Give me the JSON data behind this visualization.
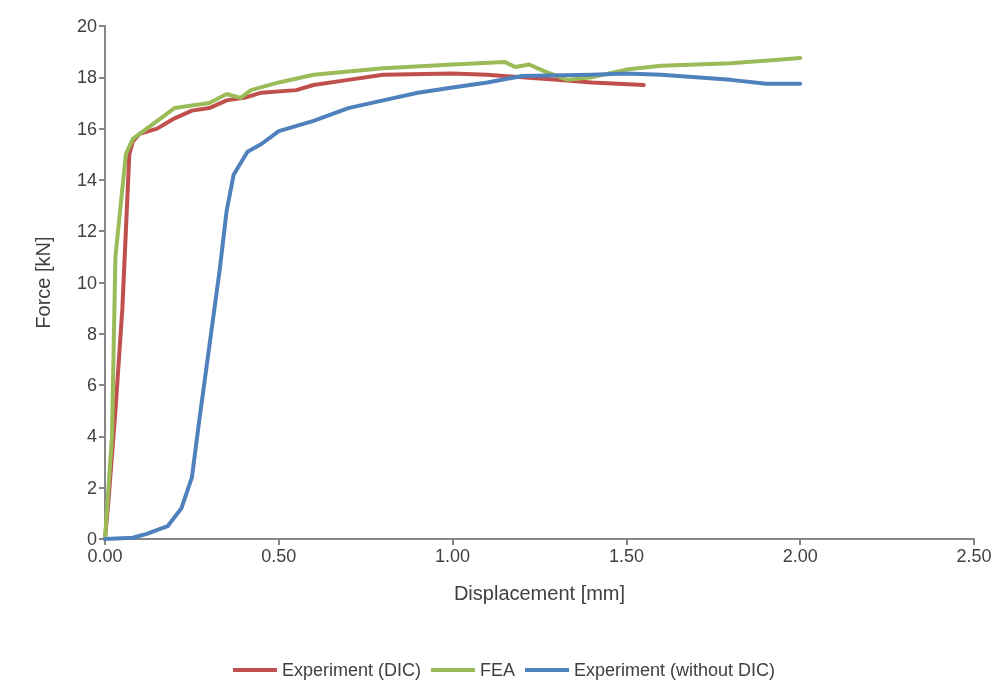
{
  "chart_data": {
    "type": "line",
    "xlabel": "Displacement [mm]",
    "ylabel": "Force [kN]",
    "xlim": [
      0,
      2.5
    ],
    "xticks": [
      {
        "value": 0,
        "label": "0.00"
      },
      {
        "value": 0.5,
        "label": "0.50"
      },
      {
        "value": 1,
        "label": "1.00"
      },
      {
        "value": 1.5,
        "label": "1.50"
      },
      {
        "value": 2,
        "label": "2.00"
      },
      {
        "value": 2.5,
        "label": "2.50"
      }
    ],
    "ylim": [
      0,
      20
    ],
    "yticks": [
      0,
      2,
      4,
      6,
      8,
      10,
      12,
      14,
      16,
      18,
      20
    ],
    "grid": false,
    "legend": "bottom",
    "marker": "none",
    "line_style": "solid",
    "series": [
      {
        "name": "Experiment (DIC)",
        "color": "#c0504d",
        "x": [
          0,
          0.01,
          0.03,
          0.05,
          0.07,
          0.08,
          0.1,
          0.15,
          0.2,
          0.25,
          0.3,
          0.35,
          0.4,
          0.45,
          0.55,
          0.6,
          0.7,
          0.8,
          1.0,
          1.1,
          1.2,
          1.3,
          1.4,
          1.55
        ],
        "values": [
          0,
          1.5,
          5,
          9,
          15,
          15.5,
          15.8,
          16.0,
          16.4,
          16.7,
          16.8,
          17.1,
          17.2,
          17.4,
          17.5,
          17.7,
          17.9,
          18.1,
          18.15,
          18.1,
          18.0,
          17.9,
          17.8,
          17.7
        ]
      },
      {
        "name": "FEA",
        "color": "#9bbb59",
        "x": [
          0,
          0.02,
          0.03,
          0.06,
          0.08,
          0.12,
          0.17,
          0.2,
          0.25,
          0.3,
          0.35,
          0.39,
          0.42,
          0.5,
          0.6,
          0.8,
          1.0,
          1.15,
          1.18,
          1.22,
          1.27,
          1.33,
          1.4,
          1.5,
          1.6,
          1.8,
          2.0
        ],
        "values": [
          0,
          4,
          11,
          15,
          15.6,
          16.0,
          16.5,
          16.8,
          16.9,
          17.0,
          17.35,
          17.2,
          17.5,
          17.8,
          18.1,
          18.35,
          18.5,
          18.6,
          18.4,
          18.5,
          18.2,
          17.9,
          18.0,
          18.3,
          18.45,
          18.55,
          18.75
        ]
      },
      {
        "name": "Experiment (without DIC)",
        "color": "#4f81bd",
        "x": [
          0,
          0.08,
          0.12,
          0.18,
          0.22,
          0.25,
          0.27,
          0.29,
          0.31,
          0.33,
          0.35,
          0.37,
          0.41,
          0.45,
          0.5,
          0.6,
          0.7,
          0.8,
          0.9,
          1.0,
          1.1,
          1.2,
          1.4,
          1.5,
          1.6,
          1.7,
          1.8,
          1.9,
          2.0
        ],
        "values": [
          0,
          0.05,
          0.2,
          0.5,
          1.2,
          2.4,
          4.5,
          6.5,
          8.5,
          10.5,
          12.8,
          14.2,
          15.1,
          15.4,
          15.9,
          16.3,
          16.8,
          17.1,
          17.4,
          17.6,
          17.8,
          18.05,
          18.1,
          18.15,
          18.1,
          18.0,
          17.9,
          17.75,
          17.75
        ]
      }
    ]
  }
}
